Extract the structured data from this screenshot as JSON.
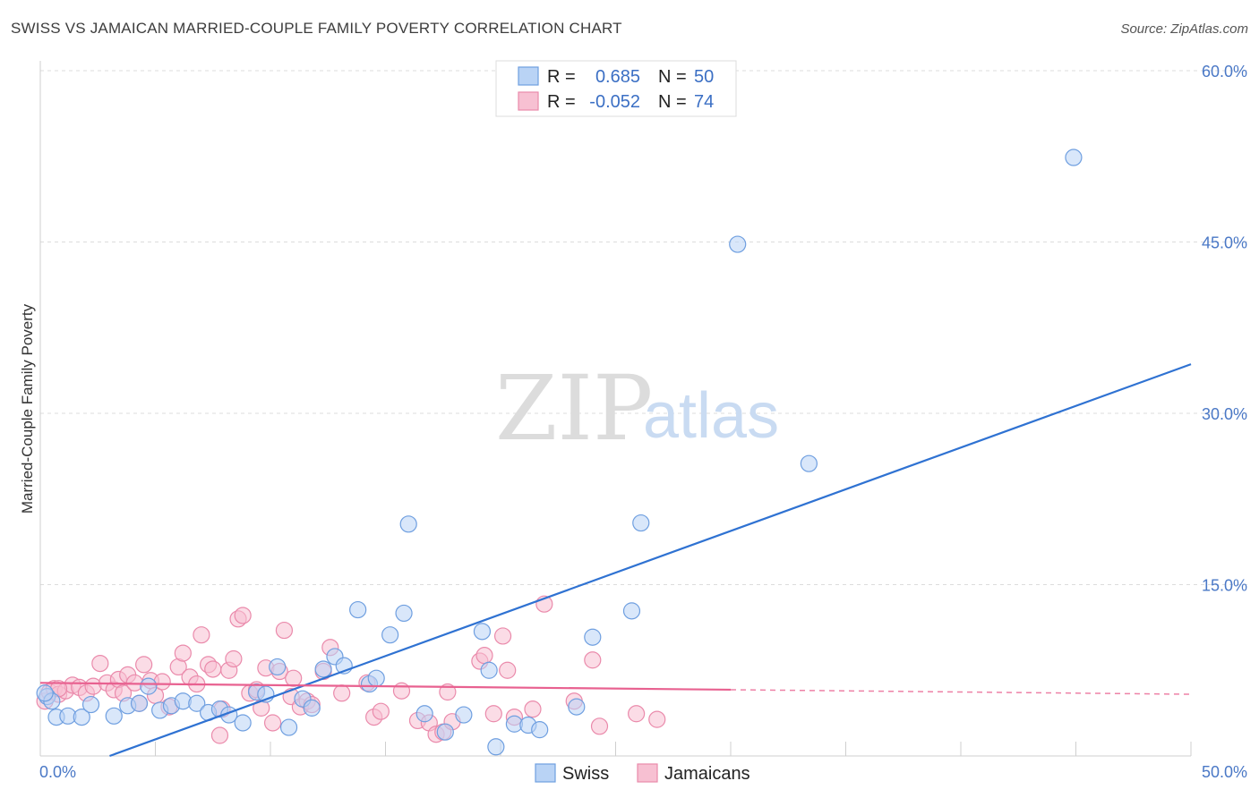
{
  "header": {
    "title": "SWISS VS JAMAICAN MARRIED-COUPLE FAMILY POVERTY CORRELATION CHART",
    "source": "Source: ZipAtlas.com"
  },
  "watermark": {
    "zip": "ZIP",
    "atlas": "atlas"
  },
  "colors": {
    "swiss_fill": "#b9d3f5",
    "swiss_stroke": "#6f9fe0",
    "swiss_line": "#2f72d2",
    "jam_fill": "#f7c0d2",
    "jam_stroke": "#ea8aab",
    "jam_line": "#e86190",
    "grid": "#dcdcdc",
    "axis_text": "#4a78c6"
  },
  "chart_data": {
    "type": "scatter",
    "title": "SWISS VS JAMAICAN MARRIED-COUPLE FAMILY POVERTY CORRELATION CHART",
    "ylabel": "Married-Couple Family Poverty",
    "xlabel": "",
    "xlim": [
      0,
      50
    ],
    "ylim": [
      0,
      60
    ],
    "x_tick_labels": [
      "0.0%",
      "50.0%"
    ],
    "y_ticks": [
      15,
      30,
      45,
      60
    ],
    "y_tick_labels": [
      "15.0%",
      "30.0%",
      "45.0%",
      "60.0%"
    ],
    "legend": [
      {
        "r_label": "R =",
        "r": "0.685",
        "n_label": "N =",
        "n": "50"
      },
      {
        "r_label": "R =",
        "r": "-0.052",
        "n_label": "N =",
        "n": "74"
      }
    ],
    "series": [
      {
        "name": "Swiss",
        "trend": {
          "x": [
            0,
            50
          ],
          "y": [
            -2.2,
            34.3
          ]
        },
        "points": [
          [
            0.3,
            5.2
          ],
          [
            0.5,
            4.8
          ],
          [
            0.7,
            3.4
          ],
          [
            1.2,
            3.5
          ],
          [
            1.8,
            3.4
          ],
          [
            2.2,
            4.5
          ],
          [
            3.2,
            3.5
          ],
          [
            3.8,
            4.4
          ],
          [
            4.3,
            4.6
          ],
          [
            4.7,
            6.1
          ],
          [
            5.2,
            4.0
          ],
          [
            5.7,
            4.4
          ],
          [
            6.2,
            4.8
          ],
          [
            6.8,
            4.6
          ],
          [
            7.3,
            3.8
          ],
          [
            7.8,
            4.1
          ],
          [
            8.2,
            3.6
          ],
          [
            8.8,
            2.9
          ],
          [
            9.4,
            5.6
          ],
          [
            9.8,
            5.4
          ],
          [
            10.3,
            7.8
          ],
          [
            10.8,
            2.5
          ],
          [
            11.4,
            5.0
          ],
          [
            11.8,
            4.2
          ],
          [
            12.3,
            7.6
          ],
          [
            12.8,
            8.7
          ],
          [
            13.2,
            7.9
          ],
          [
            13.8,
            12.8
          ],
          [
            14.3,
            6.3
          ],
          [
            14.6,
            6.8
          ],
          [
            15.2,
            10.6
          ],
          [
            15.8,
            12.5
          ],
          [
            16.0,
            20.3
          ],
          [
            16.7,
            3.7
          ],
          [
            17.6,
            2.1
          ],
          [
            18.4,
            3.6
          ],
          [
            19.2,
            10.9
          ],
          [
            19.5,
            7.5
          ],
          [
            19.8,
            0.8
          ],
          [
            20.6,
            2.8
          ],
          [
            21.2,
            2.7
          ],
          [
            21.7,
            2.3
          ],
          [
            23.3,
            4.3
          ],
          [
            24.0,
            10.4
          ],
          [
            25.7,
            12.7
          ],
          [
            26.1,
            20.4
          ],
          [
            30.3,
            44.8
          ],
          [
            33.4,
            25.6
          ],
          [
            44.9,
            52.4
          ],
          [
            0.2,
            5.5
          ]
        ]
      },
      {
        "name": "Jamaicans",
        "trend": {
          "x": [
            0,
            30
          ],
          "y": [
            6.4,
            5.8
          ]
        },
        "trend_dashed": {
          "x": [
            30,
            50
          ],
          "y": [
            5.8,
            5.4
          ]
        },
        "points": [
          [
            0.2,
            4.8
          ],
          [
            0.4,
            5.6
          ],
          [
            0.6,
            5.9
          ],
          [
            0.8,
            5.4
          ],
          [
            1.1,
            5.7
          ],
          [
            1.4,
            6.2
          ],
          [
            1.7,
            6.0
          ],
          [
            2.0,
            5.5
          ],
          [
            2.3,
            6.1
          ],
          [
            2.6,
            8.1
          ],
          [
            2.9,
            6.4
          ],
          [
            3.2,
            5.8
          ],
          [
            3.4,
            6.7
          ],
          [
            3.6,
            5.5
          ],
          [
            3.8,
            7.1
          ],
          [
            4.1,
            6.4
          ],
          [
            4.3,
            4.6
          ],
          [
            4.5,
            8.0
          ],
          [
            4.8,
            6.6
          ],
          [
            5.0,
            5.3
          ],
          [
            5.3,
            6.5
          ],
          [
            5.6,
            4.3
          ],
          [
            6.0,
            7.8
          ],
          [
            6.2,
            9.0
          ],
          [
            6.5,
            6.9
          ],
          [
            6.8,
            6.3
          ],
          [
            7.0,
            10.6
          ],
          [
            7.3,
            8.0
          ],
          [
            7.5,
            7.6
          ],
          [
            7.8,
            1.8
          ],
          [
            7.9,
            4.1
          ],
          [
            8.2,
            7.5
          ],
          [
            8.4,
            8.5
          ],
          [
            8.6,
            12.0
          ],
          [
            8.8,
            12.3
          ],
          [
            9.1,
            5.5
          ],
          [
            9.4,
            5.8
          ],
          [
            9.6,
            4.2
          ],
          [
            9.8,
            7.7
          ],
          [
            10.1,
            2.9
          ],
          [
            10.4,
            7.4
          ],
          [
            10.6,
            11.0
          ],
          [
            10.9,
            5.2
          ],
          [
            11.0,
            6.8
          ],
          [
            11.3,
            4.3
          ],
          [
            11.6,
            4.8
          ],
          [
            11.8,
            4.5
          ],
          [
            12.3,
            7.4
          ],
          [
            12.6,
            9.5
          ],
          [
            13.1,
            5.5
          ],
          [
            14.2,
            6.4
          ],
          [
            14.5,
            3.4
          ],
          [
            14.8,
            3.9
          ],
          [
            15.7,
            5.7
          ],
          [
            16.4,
            3.1
          ],
          [
            16.9,
            2.9
          ],
          [
            17.2,
            1.9
          ],
          [
            17.5,
            2.1
          ],
          [
            17.7,
            5.6
          ],
          [
            17.9,
            3.0
          ],
          [
            19.1,
            8.3
          ],
          [
            19.3,
            8.8
          ],
          [
            19.7,
            3.7
          ],
          [
            20.1,
            10.5
          ],
          [
            20.3,
            7.5
          ],
          [
            20.6,
            3.4
          ],
          [
            21.4,
            4.1
          ],
          [
            21.9,
            13.3
          ],
          [
            23.2,
            4.8
          ],
          [
            24.0,
            8.4
          ],
          [
            24.3,
            2.6
          ],
          [
            25.9,
            3.7
          ],
          [
            26.8,
            3.2
          ],
          [
            0.8,
            5.9
          ]
        ]
      }
    ]
  }
}
